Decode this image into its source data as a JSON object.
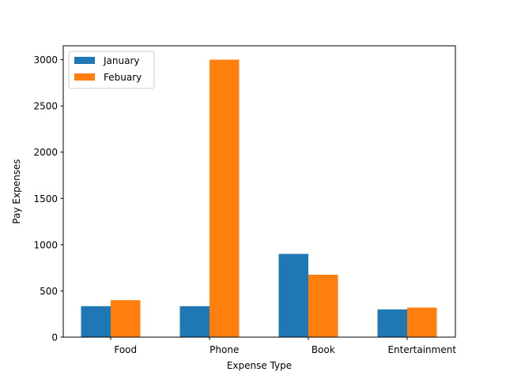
{
  "chart_data": {
    "type": "bar",
    "categories": [
      "Food",
      "Phone",
      "Book",
      "Entertainment"
    ],
    "series": [
      {
        "name": "January",
        "values": [
          335,
          335,
          900,
          300
        ],
        "color": "#1f77b4"
      },
      {
        "name": "Febuary",
        "values": [
          400,
          3000,
          675,
          320
        ],
        "color": "#ff7f0e"
      }
    ],
    "xlabel": "Expense Type",
    "ylabel": "Pay Expenses",
    "ylim": [
      0,
      3150
    ],
    "yticks": [
      0,
      500,
      1000,
      1500,
      2000,
      2500,
      3000
    ],
    "grid": false,
    "legend_position": "top-left"
  }
}
